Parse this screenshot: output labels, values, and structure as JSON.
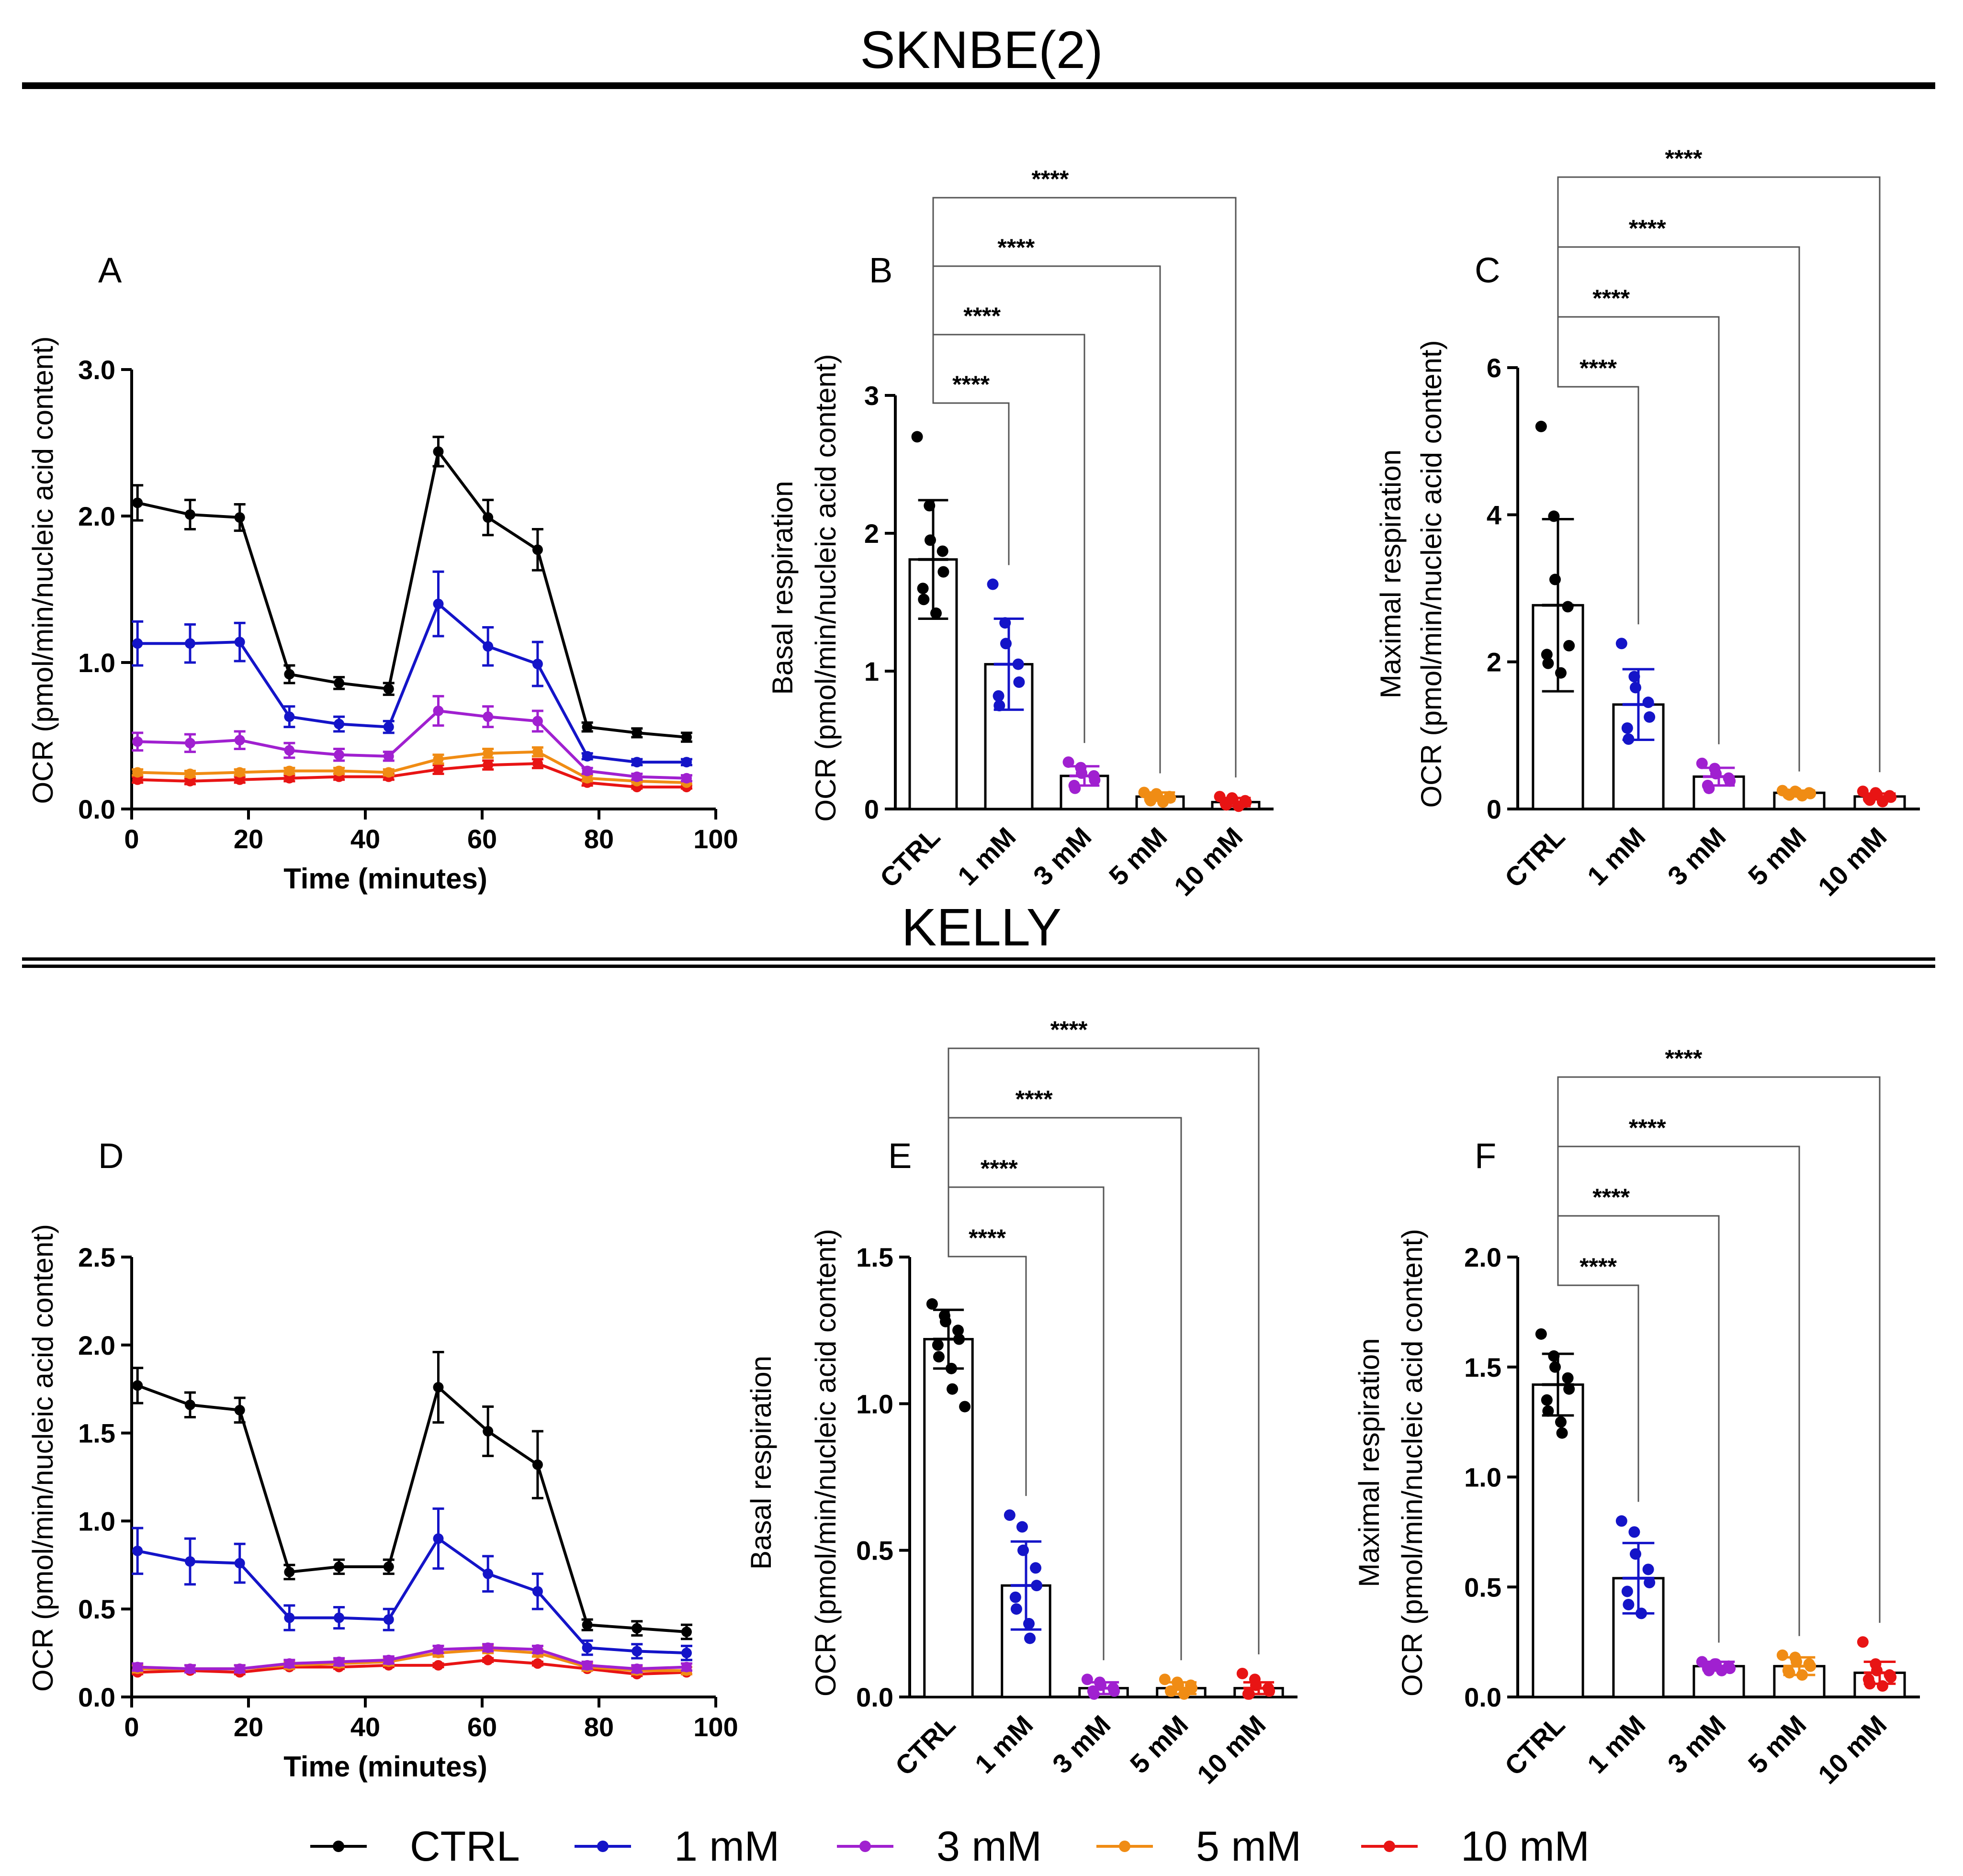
{
  "chart_data": {
    "sections": [
      {
        "id": "sknbe",
        "title": "SKNBE(2)"
      },
      {
        "id": "kelly",
        "title": "KELLY"
      }
    ],
    "legend": [
      {
        "label": "CTRL",
        "color": "#000000"
      },
      {
        "label": "1 mM",
        "color": "#1414c8"
      },
      {
        "label": "3 mM",
        "color": "#a020d0"
      },
      {
        "label": "5 mM",
        "color": "#f08c14"
      },
      {
        "label": "10 mM",
        "color": "#e81414"
      }
    ],
    "panels": [
      {
        "type": "line",
        "letter": "A",
        "section": "sknbe",
        "xlabel": "Time (minutes)",
        "ylabel": "OCR (pmol/min/nucleic acid content)",
        "xlim": [
          0,
          100
        ],
        "ylim": [
          0,
          3.0
        ],
        "xticks": [
          0,
          20,
          40,
          60,
          80,
          100
        ],
        "xtick_labels": [
          "0",
          "20",
          "40",
          "60",
          "80",
          "100"
        ],
        "yticks": [
          0,
          1,
          2,
          3
        ],
        "ytick_labels": [
          "0.0",
          "1.0",
          "2.0",
          "3.0"
        ],
        "x": [
          1,
          10,
          18.5,
          27,
          35.5,
          44,
          52.5,
          61,
          69.5,
          78,
          86.5,
          95
        ],
        "series": [
          {
            "name": "CTRL",
            "color": "#000000",
            "values": [
              2.09,
              2.01,
              1.99,
              0.92,
              0.86,
              0.82,
              2.44,
              1.99,
              1.77,
              0.56,
              0.52,
              0.49
            ],
            "errors": [
              0.12,
              0.1,
              0.09,
              0.06,
              0.04,
              0.04,
              0.1,
              0.12,
              0.14,
              0.03,
              0.03,
              0.03
            ]
          },
          {
            "name": "1 mM",
            "color": "#1414c8",
            "values": [
              1.13,
              1.13,
              1.14,
              0.63,
              0.58,
              0.56,
              1.4,
              1.11,
              0.99,
              0.36,
              0.32,
              0.32
            ],
            "errors": [
              0.15,
              0.13,
              0.13,
              0.07,
              0.05,
              0.04,
              0.22,
              0.13,
              0.15,
              0.02,
              0.02,
              0.02
            ]
          },
          {
            "name": "3 mM",
            "color": "#a020d0",
            "values": [
              0.46,
              0.45,
              0.47,
              0.4,
              0.37,
              0.36,
              0.67,
              0.63,
              0.6,
              0.26,
              0.22,
              0.21
            ],
            "errors": [
              0.06,
              0.06,
              0.06,
              0.05,
              0.04,
              0.03,
              0.1,
              0.07,
              0.07,
              0.02,
              0.02,
              0.02
            ]
          },
          {
            "name": "5 mM",
            "color": "#f08c14",
            "values": [
              0.25,
              0.24,
              0.25,
              0.26,
              0.26,
              0.25,
              0.34,
              0.38,
              0.39,
              0.21,
              0.19,
              0.18
            ],
            "errors": [
              0.02,
              0.02,
              0.02,
              0.02,
              0.02,
              0.02,
              0.03,
              0.03,
              0.03,
              0.02,
              0.01,
              0.01
            ]
          },
          {
            "name": "10 mM",
            "color": "#e81414",
            "values": [
              0.2,
              0.19,
              0.2,
              0.21,
              0.22,
              0.22,
              0.27,
              0.3,
              0.31,
              0.18,
              0.15,
              0.15
            ],
            "errors": [
              0.02,
              0.02,
              0.02,
              0.02,
              0.02,
              0.02,
              0.03,
              0.03,
              0.03,
              0.02,
              0.01,
              0.01
            ]
          }
        ]
      },
      {
        "type": "bar",
        "letter": "B",
        "section": "sknbe",
        "ylabel_line1": "Basal respiration",
        "ylabel_line2": "OCR (pmol/min/nucleic acid content)",
        "ylim": [
          0,
          3
        ],
        "yticks": [
          0,
          1,
          2,
          3
        ],
        "ytick_labels": [
          "0",
          "1",
          "2",
          "3"
        ],
        "categories": [
          "CTRL",
          "1 mM",
          "3 mM",
          "5 mM",
          "10 mM"
        ],
        "colors": [
          "#000000",
          "#1414c8",
          "#a020d0",
          "#f08c14",
          "#e81414"
        ],
        "means": [
          1.81,
          1.05,
          0.24,
          0.09,
          0.05
        ],
        "sd": [
          0.43,
          0.33,
          0.07,
          0.03,
          0.03
        ],
        "points": [
          [
            2.7,
            2.2,
            1.95,
            1.87,
            1.72,
            1.6,
            1.52,
            1.42
          ],
          [
            1.63,
            1.35,
            1.2,
            1.05,
            0.92,
            0.82,
            0.75
          ],
          [
            0.34,
            0.3,
            0.26,
            0.24,
            0.21,
            0.17,
            0.15
          ],
          [
            0.12,
            0.11,
            0.1,
            0.09,
            0.08,
            0.07,
            0.06,
            0.05
          ],
          [
            0.09,
            0.08,
            0.07,
            0.06,
            0.05,
            0.04,
            0.03,
            0.02
          ]
        ],
        "significance": [
          "****",
          "****",
          "****",
          "****"
        ]
      },
      {
        "type": "bar",
        "letter": "C",
        "section": "sknbe",
        "ylabel_line1": "Maximal respiration",
        "ylabel_line2": "OCR (pmol/min/nucleic acid content)",
        "ylim": [
          0,
          6
        ],
        "yticks": [
          0,
          2,
          4,
          6
        ],
        "ytick_labels": [
          "0",
          "2",
          "4",
          "6"
        ],
        "categories": [
          "CTRL",
          "1 mM",
          "3 mM",
          "5 mM",
          "10 mM"
        ],
        "colors": [
          "#000000",
          "#1414c8",
          "#a020d0",
          "#f08c14",
          "#e81414"
        ],
        "means": [
          2.77,
          1.42,
          0.44,
          0.22,
          0.17
        ],
        "sd": [
          1.17,
          0.48,
          0.12,
          0.03,
          0.04
        ],
        "points": [
          [
            5.2,
            3.98,
            3.12,
            2.75,
            2.22,
            2.1,
            1.98,
            1.85
          ],
          [
            2.25,
            1.8,
            1.65,
            1.45,
            1.25,
            1.1,
            0.95
          ],
          [
            0.62,
            0.55,
            0.48,
            0.42,
            0.38,
            0.32,
            0.28
          ],
          [
            0.25,
            0.24,
            0.23,
            0.22,
            0.21,
            0.2,
            0.19,
            0.18
          ],
          [
            0.24,
            0.22,
            0.2,
            0.18,
            0.16,
            0.14,
            0.12,
            0.1
          ]
        ],
        "significance": [
          "****",
          "****",
          "****",
          "****"
        ]
      },
      {
        "type": "line",
        "letter": "D",
        "section": "kelly",
        "xlabel": "Time (minutes)",
        "ylabel": "OCR (pmol/min/nucleic acid content)",
        "xlim": [
          0,
          100
        ],
        "ylim": [
          0,
          2.5
        ],
        "xticks": [
          0,
          20,
          40,
          60,
          80,
          100
        ],
        "xtick_labels": [
          "0",
          "20",
          "40",
          "60",
          "80",
          "100"
        ],
        "yticks": [
          0,
          0.5,
          1,
          1.5,
          2,
          2.5
        ],
        "ytick_labels": [
          "0.0",
          "0.5",
          "1.0",
          "1.5",
          "2.0",
          "2.5"
        ],
        "x": [
          1,
          10,
          18.5,
          27,
          35.5,
          44,
          52.5,
          61,
          69.5,
          78,
          86.5,
          95
        ],
        "series": [
          {
            "name": "CTRL",
            "color": "#000000",
            "values": [
              1.77,
              1.66,
              1.63,
              0.71,
              0.74,
              0.74,
              1.76,
              1.51,
              1.32,
              0.41,
              0.39,
              0.37
            ],
            "errors": [
              0.1,
              0.07,
              0.07,
              0.04,
              0.04,
              0.04,
              0.2,
              0.14,
              0.19,
              0.03,
              0.04,
              0.04
            ]
          },
          {
            "name": "1 mM",
            "color": "#1414c8",
            "values": [
              0.83,
              0.77,
              0.76,
              0.45,
              0.45,
              0.44,
              0.9,
              0.7,
              0.6,
              0.28,
              0.26,
              0.25
            ],
            "errors": [
              0.13,
              0.13,
              0.11,
              0.07,
              0.06,
              0.06,
              0.17,
              0.1,
              0.1,
              0.04,
              0.04,
              0.04
            ]
          },
          {
            "name": "3 mM",
            "color": "#a020d0",
            "values": [
              0.17,
              0.16,
              0.16,
              0.19,
              0.2,
              0.21,
              0.27,
              0.28,
              0.27,
              0.18,
              0.16,
              0.17
            ],
            "errors": [
              0.02,
              0.02,
              0.02,
              0.02,
              0.02,
              0.02,
              0.02,
              0.02,
              0.02,
              0.02,
              0.02,
              0.02
            ]
          },
          {
            "name": "5 mM",
            "color": "#f08c14",
            "values": [
              0.16,
              0.16,
              0.16,
              0.18,
              0.19,
              0.2,
              0.25,
              0.27,
              0.25,
              0.17,
              0.15,
              0.15
            ],
            "errors": [
              0.02,
              0.02,
              0.02,
              0.02,
              0.02,
              0.02,
              0.02,
              0.02,
              0.02,
              0.02,
              0.02,
              0.02
            ]
          },
          {
            "name": "10 mM",
            "color": "#e81414",
            "values": [
              0.14,
              0.15,
              0.14,
              0.17,
              0.17,
              0.18,
              0.18,
              0.21,
              0.19,
              0.16,
              0.13,
              0.14
            ],
            "errors": [
              0.01,
              0.01,
              0.01,
              0.01,
              0.01,
              0.01,
              0.01,
              0.01,
              0.01,
              0.01,
              0.01,
              0.01
            ]
          }
        ]
      },
      {
        "type": "bar",
        "letter": "E",
        "section": "kelly",
        "ylabel_line1": "Basal respiration",
        "ylabel_line2": "OCR (pmol/min/nucleic acid content)",
        "ylim": [
          0,
          1.5
        ],
        "yticks": [
          0,
          0.5,
          1,
          1.5
        ],
        "ytick_labels": [
          "0.0",
          "0.5",
          "1.0",
          "1.5"
        ],
        "categories": [
          "CTRL",
          "1 mM",
          "3 mM",
          "5 mM",
          "10 mM"
        ],
        "colors": [
          "#000000",
          "#1414c8",
          "#a020d0",
          "#f08c14",
          "#e81414"
        ],
        "means": [
          1.22,
          0.38,
          0.03,
          0.03,
          0.03
        ],
        "sd": [
          0.1,
          0.15,
          0.02,
          0.02,
          0.02
        ],
        "points": [
          [
            1.34,
            1.3,
            1.28,
            1.25,
            1.22,
            1.2,
            1.16,
            1.12,
            1.05,
            0.99
          ],
          [
            0.62,
            0.58,
            0.5,
            0.44,
            0.38,
            0.34,
            0.3,
            0.25,
            0.2
          ],
          [
            0.06,
            0.05,
            0.04,
            0.03,
            0.02,
            0.02,
            0.01
          ],
          [
            0.06,
            0.05,
            0.04,
            0.04,
            0.03,
            0.02,
            0.02,
            0.01
          ],
          [
            0.08,
            0.06,
            0.04,
            0.03,
            0.02,
            0.01,
            0.01
          ]
        ],
        "significance": [
          "****",
          "****",
          "****",
          "****"
        ]
      },
      {
        "type": "bar",
        "letter": "F",
        "section": "kelly",
        "ylabel_line1": "Maximal respiration",
        "ylabel_line2": "OCR (pmol/min/nucleic acid content)",
        "ylim": [
          0,
          2.0
        ],
        "yticks": [
          0,
          0.5,
          1,
          1.5,
          2
        ],
        "ytick_labels": [
          "0.0",
          "0.5",
          "1.0",
          "1.5",
          "2.0"
        ],
        "categories": [
          "CTRL",
          "1 mM",
          "3 mM",
          "5 mM",
          "10 mM"
        ],
        "colors": [
          "#000000",
          "#1414c8",
          "#a020d0",
          "#f08c14",
          "#e81414"
        ],
        "means": [
          1.42,
          0.54,
          0.14,
          0.14,
          0.11
        ],
        "sd": [
          0.14,
          0.16,
          0.02,
          0.04,
          0.05
        ],
        "points": [
          [
            1.65,
            1.55,
            1.5,
            1.45,
            1.4,
            1.35,
            1.3,
            1.25,
            1.2
          ],
          [
            0.8,
            0.75,
            0.65,
            0.58,
            0.52,
            0.48,
            0.42,
            0.38
          ],
          [
            0.16,
            0.15,
            0.15,
            0.14,
            0.13,
            0.13,
            0.12,
            0.12
          ],
          [
            0.19,
            0.18,
            0.16,
            0.15,
            0.14,
            0.12,
            0.11,
            0.1
          ],
          [
            0.25,
            0.15,
            0.12,
            0.1,
            0.09,
            0.08,
            0.06,
            0.05
          ]
        ],
        "significance": [
          "****",
          "****",
          "****",
          "****"
        ]
      }
    ]
  }
}
